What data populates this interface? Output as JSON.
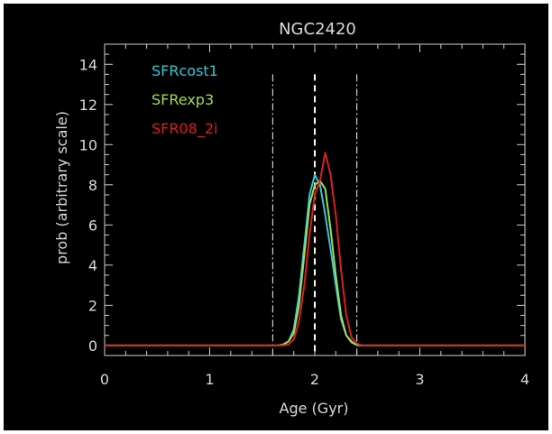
{
  "chart_data": {
    "type": "line",
    "title": "NGC2420",
    "xlabel": "Age (Gyr)",
    "ylabel": "prob (arbitrary scale)",
    "xlim": [
      0,
      4
    ],
    "ylim": [
      -0.5,
      15
    ],
    "xticks": [
      0,
      1,
      2,
      3,
      4
    ],
    "yticks": [
      0,
      2,
      4,
      6,
      8,
      10,
      12,
      14
    ],
    "legend_position": "top-left",
    "grid": false,
    "background": "#000000",
    "vlines": [
      {
        "x": 1.6,
        "style": "dash-dot",
        "color": "#d0d0d0"
      },
      {
        "x": 2.0,
        "style": "dashed",
        "color": "#ffffff"
      },
      {
        "x": 2.4,
        "style": "dash-dot",
        "color": "#d0d0d0"
      }
    ],
    "series": [
      {
        "name": "SFRcost1",
        "color": "#35c6d8",
        "x": [
          0.0,
          1.65,
          1.7,
          1.75,
          1.8,
          1.85,
          1.9,
          1.95,
          2.0,
          2.05,
          2.1,
          2.15,
          2.2,
          2.25,
          2.3,
          2.35,
          2.4,
          2.45,
          4.0
        ],
        "y": [
          0.0,
          0.0,
          0.05,
          0.2,
          0.8,
          2.5,
          5.0,
          7.5,
          8.5,
          8.0,
          6.5,
          4.8,
          3.0,
          1.3,
          0.5,
          0.2,
          0.02,
          0.0,
          0.0
        ]
      },
      {
        "name": "SFRexp3",
        "color": "#a2dc50",
        "x": [
          0.0,
          1.65,
          1.7,
          1.75,
          1.8,
          1.85,
          1.9,
          1.95,
          2.0,
          2.05,
          2.1,
          2.15,
          2.2,
          2.25,
          2.3,
          2.35,
          2.4,
          2.45,
          4.0
        ],
        "y": [
          0.0,
          0.0,
          0.05,
          0.2,
          0.6,
          2.0,
          4.5,
          7.0,
          8.0,
          8.2,
          7.8,
          5.8,
          3.5,
          1.5,
          0.5,
          0.15,
          0.02,
          0.0,
          0.0
        ]
      },
      {
        "name": "SFR08_2i",
        "color": "#d82020",
        "x": [
          0.0,
          1.7,
          1.75,
          1.8,
          1.85,
          1.9,
          1.95,
          2.0,
          2.05,
          2.1,
          2.15,
          2.2,
          2.25,
          2.3,
          2.35,
          2.4,
          2.45,
          4.0
        ],
        "y": [
          0.0,
          0.0,
          0.05,
          0.3,
          1.2,
          3.0,
          5.5,
          7.5,
          8.2,
          9.6,
          8.5,
          6.5,
          3.8,
          1.5,
          0.4,
          0.1,
          0.0,
          0.0
        ]
      }
    ]
  }
}
